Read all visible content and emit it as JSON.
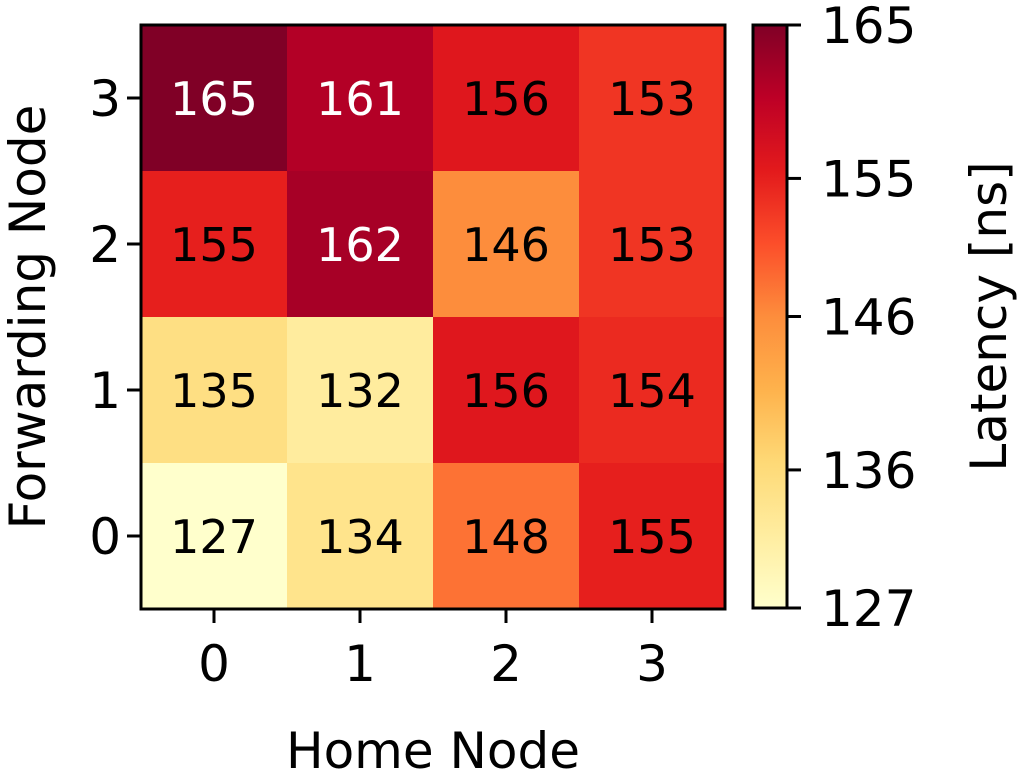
{
  "chart_data": {
    "type": "heatmap",
    "xlabel": "Home Node",
    "ylabel": "Forwarding Node",
    "x_categories": [
      "0",
      "1",
      "2",
      "3"
    ],
    "y_categories": [
      "0",
      "1",
      "2",
      "3"
    ],
    "values": [
      [
        127,
        134,
        148,
        155
      ],
      [
        135,
        132,
        156,
        154
      ],
      [
        155,
        162,
        146,
        153
      ],
      [
        165,
        161,
        156,
        153
      ]
    ],
    "colorbar": {
      "label": "Latency [ns]",
      "min": 127,
      "max": 165,
      "ticks": [
        127,
        136,
        146,
        155,
        165
      ],
      "colormap": "YlOrRd"
    },
    "text_color_light": "#ffffff",
    "text_color_dark": "#000000"
  }
}
